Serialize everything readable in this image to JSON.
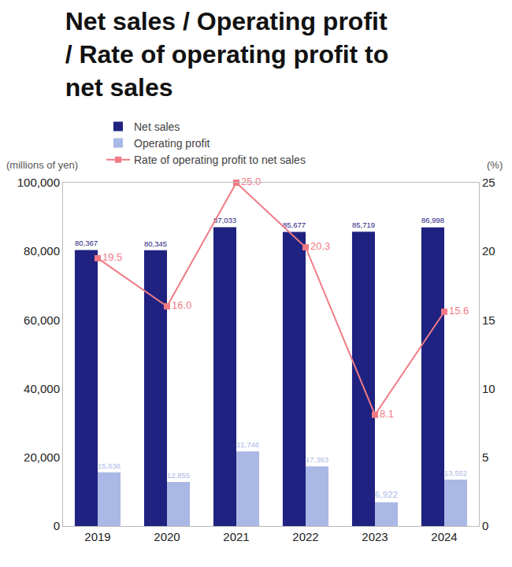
{
  "chart_data": {
    "type": "bar",
    "title": "Net sales / Operating profit / Rate of operating profit to net sales",
    "ylabel": "(millions of yen)",
    "y2label": "(%)",
    "categories": [
      "2019",
      "2020",
      "2021",
      "2022",
      "2023",
      "2024"
    ],
    "series": [
      {
        "name": "Net sales",
        "type": "bar",
        "color": "#1f2280",
        "values": [
          80367,
          80345,
          87033,
          85677,
          85719,
          86998
        ],
        "value_labels": [
          "80,367",
          "80,345",
          "87,033",
          "85,677",
          "85,719",
          "86,998"
        ]
      },
      {
        "name": "Operating profit",
        "type": "bar",
        "color": "#aab8e6",
        "values": [
          15636,
          12855,
          21746,
          17363,
          6922,
          13552
        ],
        "value_labels": [
          "15,636",
          "12,855",
          "21,746",
          "17,363",
          "6,922",
          "13,552"
        ]
      },
      {
        "name": "Rate of operating profit to net sales",
        "type": "line",
        "axis": "y2",
        "color": "#f07a85",
        "marker": "square",
        "line_style": "solid",
        "values": [
          19.5,
          16.0,
          25.0,
          20.3,
          8.1,
          15.6
        ],
        "value_labels": [
          "19.5",
          "16.0",
          "25.0",
          "20.3",
          "8.1",
          "15.6"
        ]
      }
    ],
    "ylim": [
      0,
      100000
    ],
    "yticks": [
      0,
      {
        "value": 20000,
        "label": "20,000"
      },
      {
        "value": 40000,
        "label": "40,000"
      },
      {
        "value": 60000,
        "label": "60,000"
      },
      {
        "value": 80000,
        "label": "80,000"
      },
      {
        "value": 100000,
        "label": "100,000"
      }
    ],
    "y2lim": [
      0,
      25
    ],
    "y2ticks": [
      0,
      5,
      10,
      15,
      20,
      25
    ],
    "grid": false,
    "legend": "top",
    "data_labels": true
  }
}
